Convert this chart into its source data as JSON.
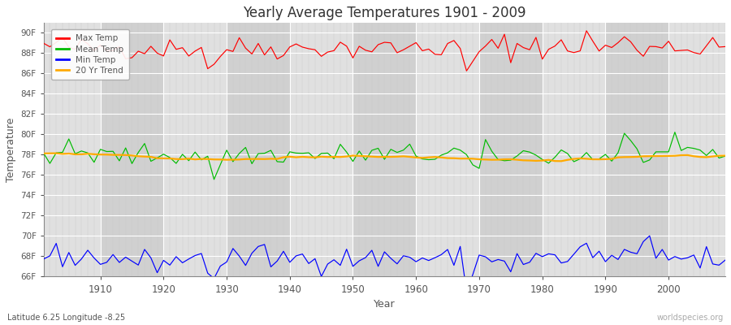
{
  "title": "Yearly Average Temperatures 1901 - 2009",
  "xlabel": "Year",
  "ylabel": "Temperature",
  "footer_left": "Latitude 6.25 Longitude -8.25",
  "footer_right": "worldspecies.org",
  "year_start": 1901,
  "year_end": 2009,
  "ylim": [
    66,
    91
  ],
  "yticks": [
    66,
    68,
    70,
    72,
    74,
    76,
    78,
    80,
    82,
    84,
    86,
    88,
    90
  ],
  "ytick_labels": [
    "66F",
    "68F",
    "70F",
    "72F",
    "74F",
    "76F",
    "78F",
    "80F",
    "82F",
    "84F",
    "86F",
    "88F",
    "90F"
  ],
  "xticks": [
    1910,
    1920,
    1930,
    1940,
    1950,
    1960,
    1970,
    1980,
    1990,
    2000
  ],
  "colors": {
    "max_temp": "#ff0000",
    "mean_temp": "#00bb00",
    "min_temp": "#0000ff",
    "trend": "#ffaa00",
    "fig_bg": "#ffffff",
    "plot_bg": "#d8d8d8",
    "col_bg_light": "#e0e0e0",
    "col_bg_dark": "#d0d0d0",
    "grid_major": "#ffffff",
    "grid_minor": "#c8c8c8",
    "text": "#555555",
    "spine": "#888888"
  },
  "legend": [
    "Max Temp",
    "Mean Temp",
    "Min Temp",
    "20 Yr Trend"
  ],
  "max_temp_base": 88.5,
  "mean_temp_base": 78.0,
  "min_temp_base": 67.8,
  "seed": 42
}
